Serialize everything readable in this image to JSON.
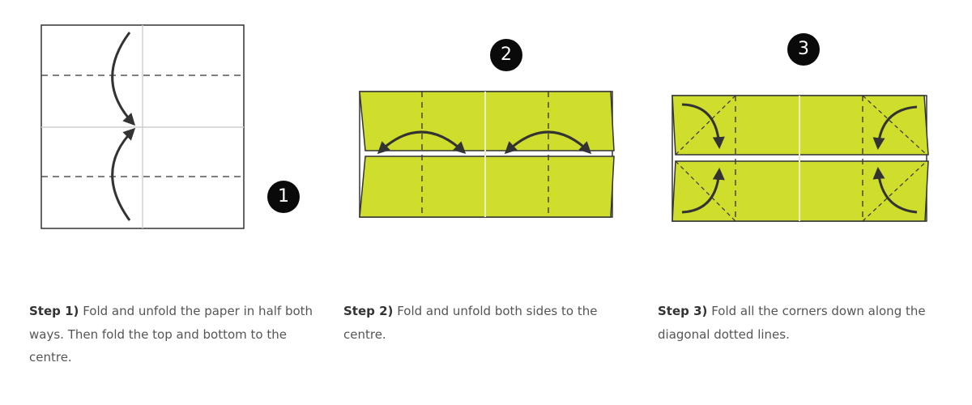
{
  "steps": [
    {
      "number": "1",
      "label": "Step 1)",
      "text": "Fold and unfold the paper in half both ways. Then fold the top and bottom to the centre."
    },
    {
      "number": "2",
      "label": "Step 2)",
      "text": "Fold and unfold both sides to the centre."
    },
    {
      "number": "3",
      "label": "Step 3)",
      "text": "Fold all the corners down along the diagonal dotted lines."
    }
  ],
  "colors": {
    "paper": "#cfdd2c",
    "outline": "#333333",
    "crease": "#cfcfcf",
    "badge": "#0a0a0a"
  }
}
